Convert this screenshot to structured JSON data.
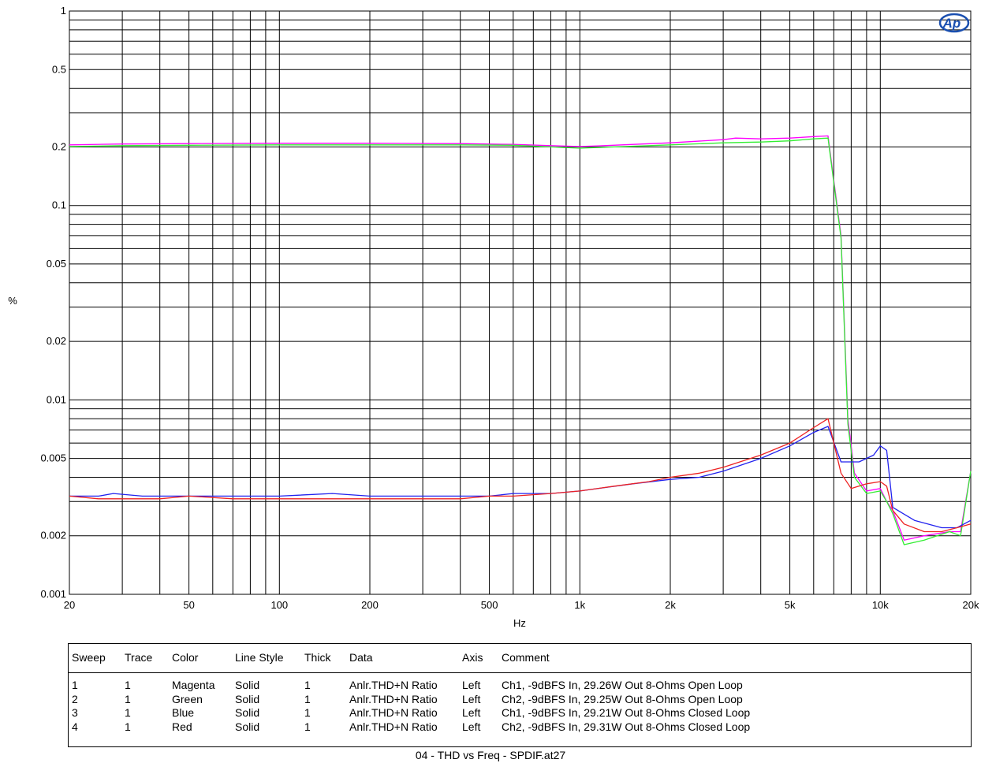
{
  "chart_data": {
    "type": "line",
    "xlabel": "Hz",
    "ylabel": "%",
    "xscale": "log",
    "yscale": "log",
    "xlim": [
      20,
      20000
    ],
    "ylim": [
      0.001,
      1
    ],
    "grid": true,
    "x_tick_labels": [
      {
        "v": 20,
        "t": "20"
      },
      {
        "v": 50,
        "t": "50"
      },
      {
        "v": 100,
        "t": "100"
      },
      {
        "v": 200,
        "t": "200"
      },
      {
        "v": 500,
        "t": "500"
      },
      {
        "v": 1000,
        "t": "1k"
      },
      {
        "v": 2000,
        "t": "2k"
      },
      {
        "v": 5000,
        "t": "5k"
      },
      {
        "v": 10000,
        "t": "10k"
      },
      {
        "v": 20000,
        "t": "20k"
      }
    ],
    "y_tick_labels": [
      {
        "v": 1,
        "t": "1"
      },
      {
        "v": 0.5,
        "t": "0.5"
      },
      {
        "v": 0.2,
        "t": "0.2"
      },
      {
        "v": 0.1,
        "t": "0.1"
      },
      {
        "v": 0.05,
        "t": "0.05"
      },
      {
        "v": 0.02,
        "t": "0.02"
      },
      {
        "v": 0.01,
        "t": "0.01"
      },
      {
        "v": 0.005,
        "t": "0.005"
      },
      {
        "v": 0.002,
        "t": "0.002"
      },
      {
        "v": 0.001,
        "t": "0.001"
      }
    ],
    "x_grid": [
      20,
      30,
      40,
      50,
      60,
      70,
      80,
      90,
      100,
      200,
      300,
      400,
      500,
      600,
      700,
      800,
      900,
      1000,
      2000,
      3000,
      4000,
      5000,
      6000,
      7000,
      8000,
      9000,
      10000,
      20000
    ],
    "y_grid": [
      0.001,
      0.002,
      0.003,
      0.004,
      0.005,
      0.006,
      0.007,
      0.008,
      0.009,
      0.01,
      0.02,
      0.03,
      0.04,
      0.05,
      0.06,
      0.07,
      0.08,
      0.09,
      0.1,
      0.2,
      0.3,
      0.4,
      0.5,
      0.6,
      0.7,
      0.8,
      0.9,
      1
    ],
    "series": [
      {
        "name": "Magenta",
        "color": "#ff00ff",
        "points": [
          [
            20,
            0.205
          ],
          [
            30,
            0.207
          ],
          [
            50,
            0.208
          ],
          [
            100,
            0.209
          ],
          [
            200,
            0.209
          ],
          [
            400,
            0.208
          ],
          [
            600,
            0.206
          ],
          [
            800,
            0.203
          ],
          [
            1000,
            0.201
          ],
          [
            1200,
            0.203
          ],
          [
            2000,
            0.21
          ],
          [
            3000,
            0.218
          ],
          [
            3300,
            0.222
          ],
          [
            4000,
            0.22
          ],
          [
            5000,
            0.222
          ],
          [
            6000,
            0.226
          ],
          [
            6700,
            0.228
          ],
          [
            7400,
            0.07
          ],
          [
            7800,
            0.008
          ],
          [
            8200,
            0.0042
          ],
          [
            9000,
            0.0034
          ],
          [
            10000,
            0.0035
          ],
          [
            10500,
            0.003
          ],
          [
            11000,
            0.0027
          ],
          [
            12000,
            0.0019
          ],
          [
            14000,
            0.002
          ],
          [
            17000,
            0.0021
          ],
          [
            18500,
            0.0021
          ],
          [
            20000,
            0.0043
          ]
        ]
      },
      {
        "name": "Green",
        "color": "#33ee33",
        "points": [
          [
            20,
            0.201
          ],
          [
            30,
            0.203
          ],
          [
            50,
            0.204
          ],
          [
            100,
            0.205
          ],
          [
            200,
            0.205
          ],
          [
            400,
            0.205
          ],
          [
            600,
            0.204
          ],
          [
            800,
            0.2
          ],
          [
            1000,
            0.197
          ],
          [
            1200,
            0.199
          ],
          [
            2000,
            0.205
          ],
          [
            3000,
            0.21
          ],
          [
            4000,
            0.212
          ],
          [
            5000,
            0.215
          ],
          [
            6000,
            0.22
          ],
          [
            6700,
            0.222
          ],
          [
            7400,
            0.068
          ],
          [
            7800,
            0.0075
          ],
          [
            8200,
            0.004
          ],
          [
            9000,
            0.0033
          ],
          [
            10000,
            0.0034
          ],
          [
            10500,
            0.003
          ],
          [
            11000,
            0.0026
          ],
          [
            12000,
            0.0018
          ],
          [
            14000,
            0.0019
          ],
          [
            17000,
            0.0021
          ],
          [
            18500,
            0.002
          ],
          [
            20000,
            0.0043
          ]
        ]
      },
      {
        "name": "Blue",
        "color": "#2222ee",
        "points": [
          [
            20,
            0.0032
          ],
          [
            25,
            0.0032
          ],
          [
            28,
            0.0033
          ],
          [
            35,
            0.0032
          ],
          [
            50,
            0.0032
          ],
          [
            70,
            0.0032
          ],
          [
            100,
            0.0032
          ],
          [
            150,
            0.0033
          ],
          [
            200,
            0.0032
          ],
          [
            300,
            0.0032
          ],
          [
            400,
            0.0032
          ],
          [
            500,
            0.0032
          ],
          [
            600,
            0.0033
          ],
          [
            700,
            0.0033
          ],
          [
            800,
            0.0033
          ],
          [
            1000,
            0.0034
          ],
          [
            1500,
            0.0037
          ],
          [
            2000,
            0.0039
          ],
          [
            2500,
            0.004
          ],
          [
            3000,
            0.0043
          ],
          [
            4000,
            0.005
          ],
          [
            5000,
            0.0058
          ],
          [
            6000,
            0.0068
          ],
          [
            6700,
            0.0073
          ],
          [
            7400,
            0.0048
          ],
          [
            8500,
            0.0048
          ],
          [
            9500,
            0.0052
          ],
          [
            10000,
            0.0058
          ],
          [
            10500,
            0.0055
          ],
          [
            11000,
            0.0028
          ],
          [
            13000,
            0.0024
          ],
          [
            16000,
            0.0022
          ],
          [
            18000,
            0.0022
          ],
          [
            20000,
            0.0024
          ]
        ]
      },
      {
        "name": "Red",
        "color": "#ee2222",
        "points": [
          [
            20,
            0.0032
          ],
          [
            25,
            0.0031
          ],
          [
            30,
            0.0031
          ],
          [
            40,
            0.0031
          ],
          [
            50,
            0.0032
          ],
          [
            70,
            0.0031
          ],
          [
            100,
            0.0031
          ],
          [
            150,
            0.0031
          ],
          [
            200,
            0.0031
          ],
          [
            300,
            0.0031
          ],
          [
            400,
            0.0031
          ],
          [
            500,
            0.0032
          ],
          [
            600,
            0.0032
          ],
          [
            800,
            0.0033
          ],
          [
            1000,
            0.0034
          ],
          [
            1300,
            0.0036
          ],
          [
            1700,
            0.0038
          ],
          [
            2000,
            0.004
          ],
          [
            2500,
            0.0042
          ],
          [
            3000,
            0.0045
          ],
          [
            4000,
            0.0052
          ],
          [
            5000,
            0.006
          ],
          [
            6000,
            0.0072
          ],
          [
            6700,
            0.008
          ],
          [
            7400,
            0.0042
          ],
          [
            8000,
            0.0035
          ],
          [
            9000,
            0.0037
          ],
          [
            10000,
            0.0038
          ],
          [
            10500,
            0.0036
          ],
          [
            11000,
            0.0027
          ],
          [
            12000,
            0.0023
          ],
          [
            14000,
            0.0021
          ],
          [
            16000,
            0.0021
          ],
          [
            18000,
            0.0022
          ],
          [
            20000,
            0.0023
          ]
        ]
      }
    ]
  },
  "legend": {
    "headers": {
      "sweep": "Sweep",
      "trace": "Trace",
      "color": "Color",
      "linestyle": "Line Style",
      "thick": "Thick",
      "data": "Data",
      "axis": "Axis",
      "comment": "Comment"
    },
    "rows": [
      {
        "sweep": "1",
        "trace": "1",
        "color": "Magenta",
        "linestyle": "Solid",
        "thick": "1",
        "data": "Anlr.THD+N Ratio",
        "axis": "Left",
        "comment": "Ch1, -9dBFS In, 29.26W Out 8-Ohms Open Loop"
      },
      {
        "sweep": "2",
        "trace": "1",
        "color": "Green",
        "linestyle": "Solid",
        "thick": "1",
        "data": "Anlr.THD+N Ratio",
        "axis": "Left",
        "comment": "Ch2, -9dBFS In, 29.25W Out 8-Ohms Open Loop"
      },
      {
        "sweep": "3",
        "trace": "1",
        "color": "Blue",
        "linestyle": "Solid",
        "thick": "1",
        "data": "Anlr.THD+N Ratio",
        "axis": "Left",
        "comment": "Ch1, -9dBFS In, 29.21W Out 8-Ohms Closed Loop"
      },
      {
        "sweep": "4",
        "trace": "1",
        "color": "Red",
        "linestyle": "Solid",
        "thick": "1",
        "data": "Anlr.THD+N Ratio",
        "axis": "Left",
        "comment": "Ch2, -9dBFS In, 29.31W Out 8-Ohms Closed Loop"
      }
    ]
  },
  "caption": "04 - THD vs Freq - SPDIF.at27",
  "logo_text": "Ap",
  "logo_color": "#1a4fb0"
}
